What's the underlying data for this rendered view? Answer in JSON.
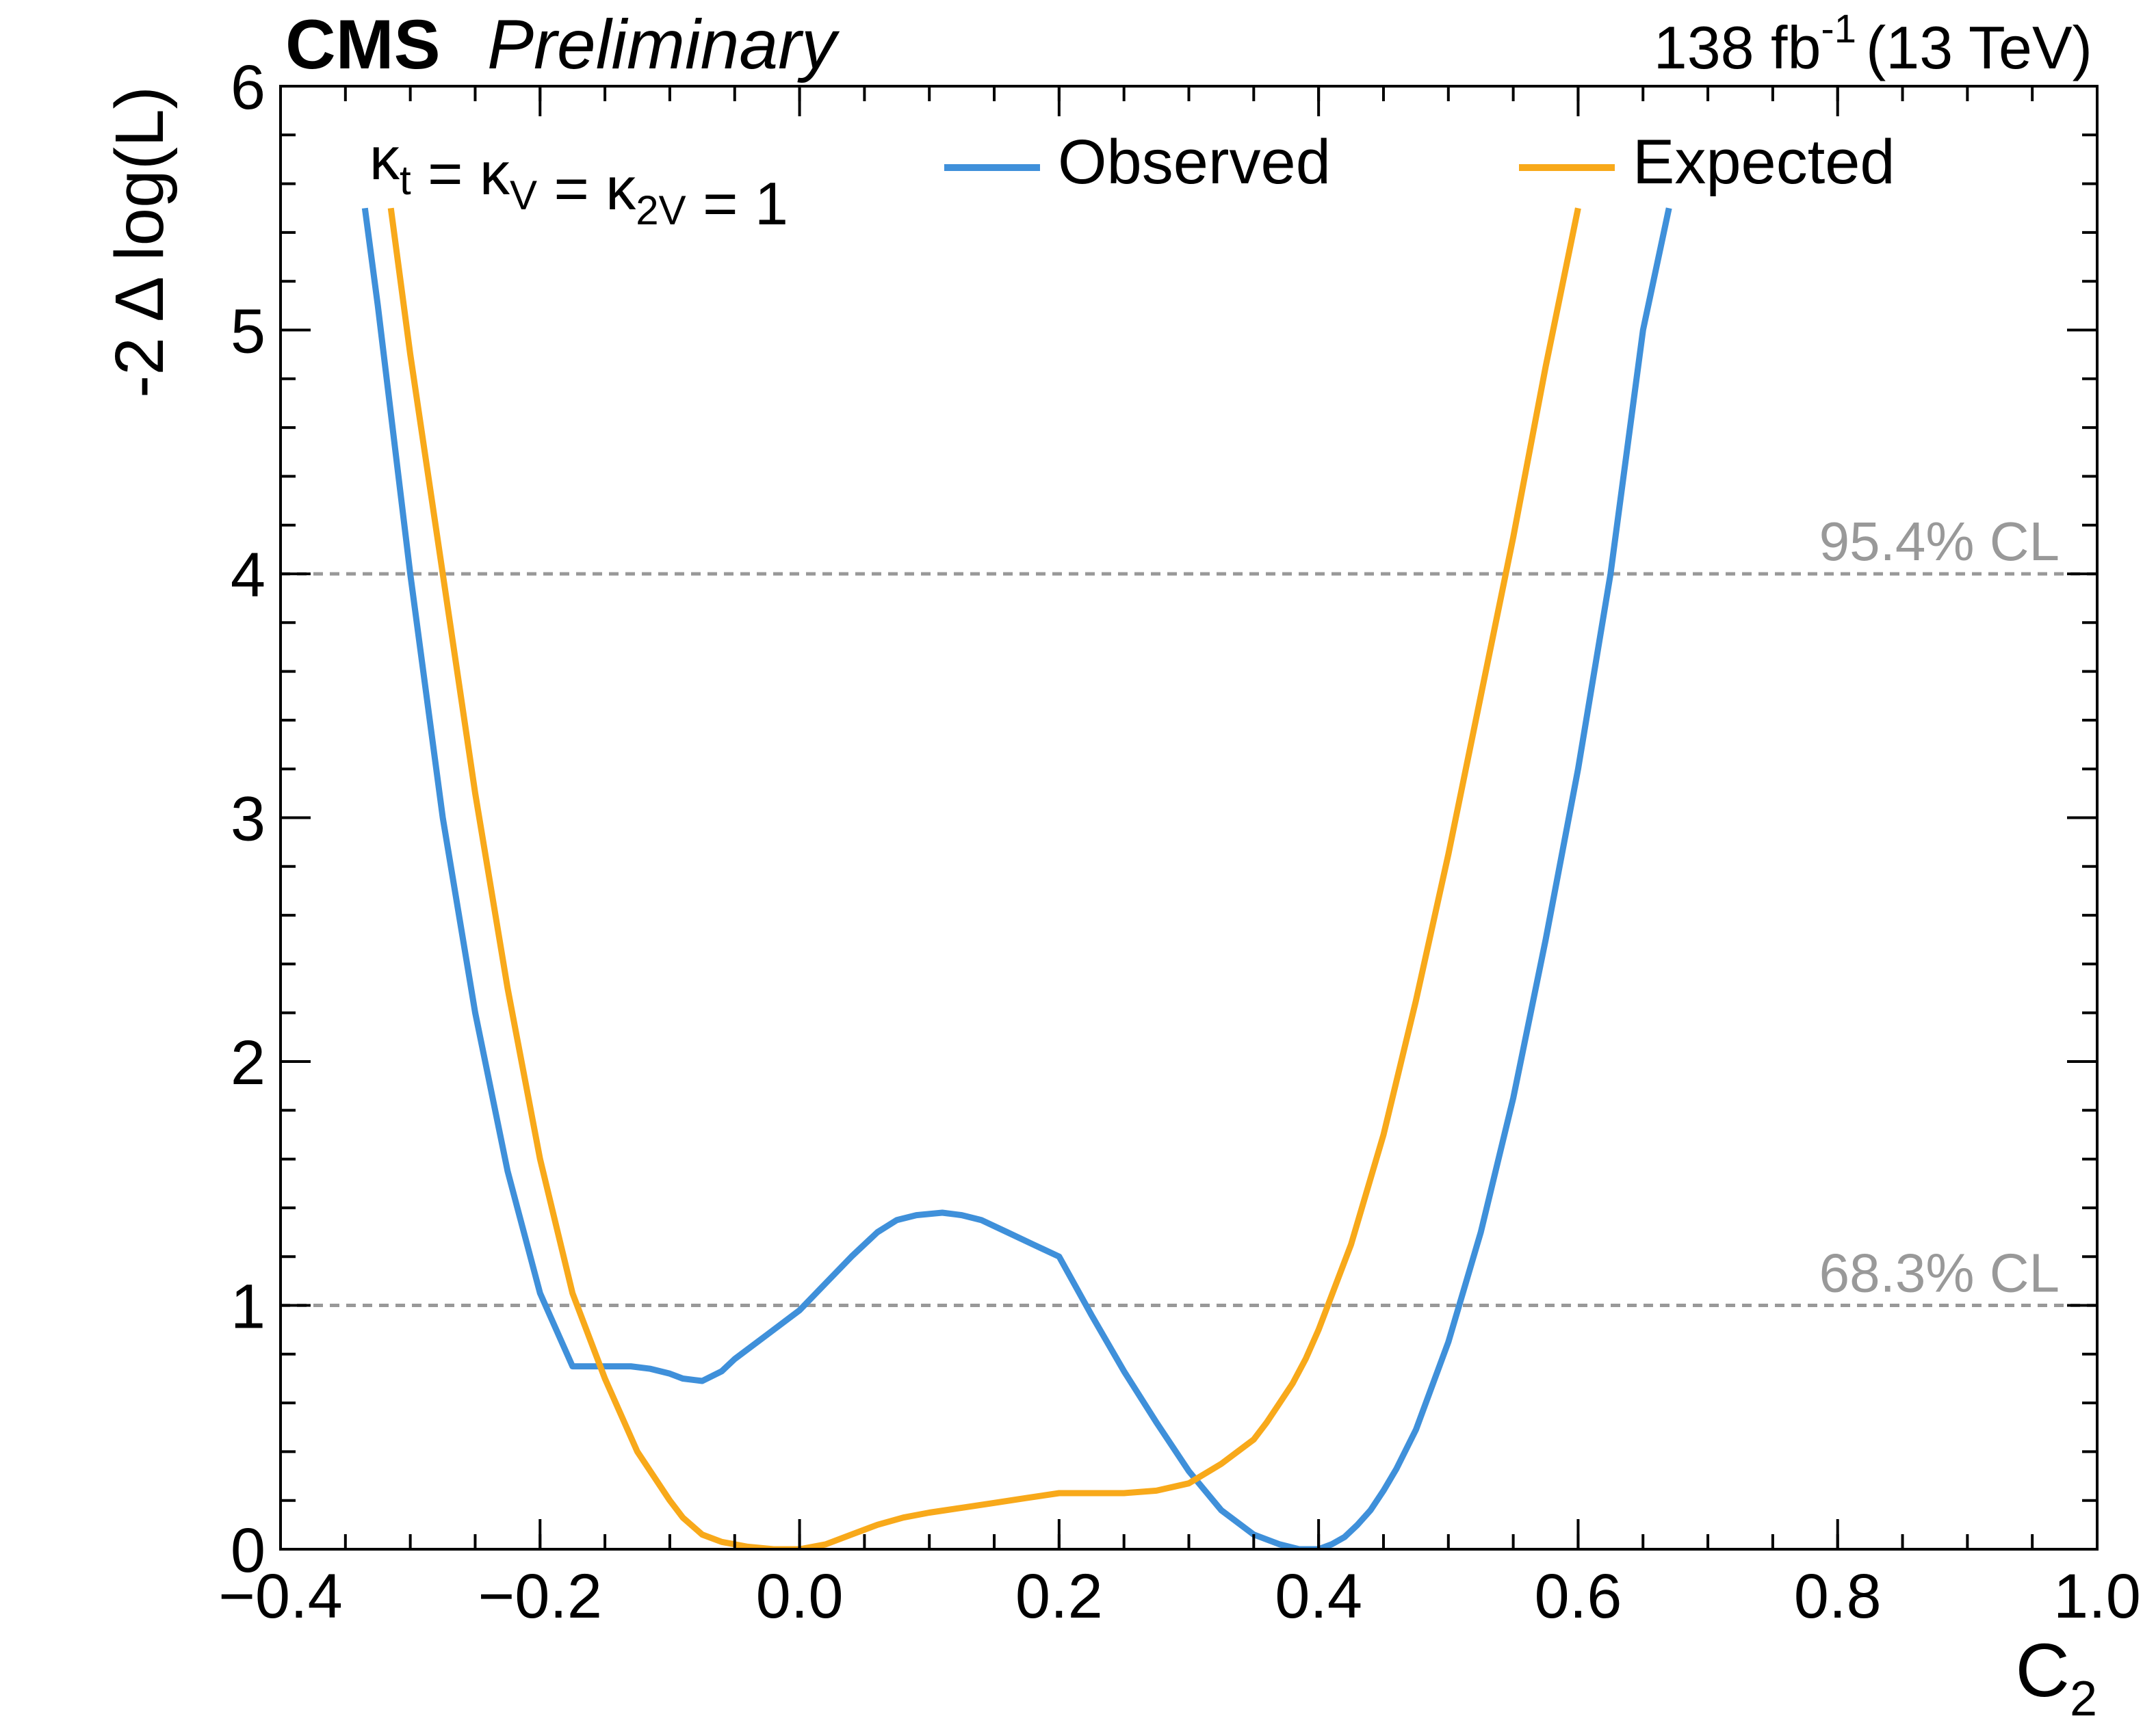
{
  "chart_data": {
    "type": "line",
    "experiment": "CMS",
    "status": "Preliminary",
    "lumi_text": "138 fb",
    "lumi_exp": "-1",
    "energy_text": "(13 TeV)",
    "xlabel": {
      "main": "C",
      "sub": "2"
    },
    "ylabel": "-2 Δ log(L)",
    "xlim": [
      -0.4,
      1.0
    ],
    "ylim": [
      0,
      6
    ],
    "x_ticks": [
      -0.4,
      -0.2,
      0.0,
      0.2,
      0.4,
      0.6,
      0.8,
      1.0
    ],
    "x_tick_labels": [
      "−0.4",
      "−0.2",
      "0.0",
      "0.2",
      "0.4",
      "0.6",
      "0.8",
      "1.0"
    ],
    "y_ticks": [
      0,
      1,
      2,
      3,
      4,
      5,
      6
    ],
    "y_tick_labels": [
      "0",
      "1",
      "2",
      "3",
      "4",
      "5",
      "6"
    ],
    "x_minor_step": 0.05,
    "y_minor_step": 0.2,
    "grid": false,
    "legend_position": "top",
    "annotation": {
      "parts": [
        {
          "t": "κ",
          "s": "t"
        },
        {
          "t": " = κ",
          "s": "V"
        },
        {
          "t": " = κ",
          "s": "2V"
        },
        {
          "t": " = 1",
          "s": ""
        }
      ]
    },
    "reference_lines": [
      {
        "y": 1,
        "label": "68.3% CL",
        "color": "#999999"
      },
      {
        "y": 4,
        "label": "95.4% CL",
        "color": "#999999"
      }
    ],
    "series": [
      {
        "name": "Observed",
        "color": "#3f90da",
        "x": [
          -0.335,
          -0.325,
          -0.3,
          -0.275,
          -0.25,
          -0.225,
          -0.2,
          -0.175,
          -0.15,
          -0.13,
          -0.115,
          -0.1,
          -0.09,
          -0.075,
          -0.06,
          -0.05,
          -0.025,
          0.0,
          0.02,
          0.04,
          0.06,
          0.075,
          0.09,
          0.11,
          0.125,
          0.14,
          0.16,
          0.18,
          0.2,
          0.225,
          0.25,
          0.275,
          0.3,
          0.325,
          0.35,
          0.37,
          0.385,
          0.4,
          0.41,
          0.42,
          0.43,
          0.44,
          0.45,
          0.46,
          0.475,
          0.5,
          0.525,
          0.55,
          0.575,
          0.6,
          0.625,
          0.65,
          0.67
        ],
        "y": [
          5.5,
          5.1,
          4.0,
          3.0,
          2.2,
          1.55,
          1.05,
          0.75,
          0.75,
          0.75,
          0.74,
          0.72,
          0.7,
          0.69,
          0.73,
          0.78,
          0.88,
          0.98,
          1.09,
          1.2,
          1.3,
          1.35,
          1.37,
          1.38,
          1.37,
          1.35,
          1.3,
          1.25,
          1.2,
          0.96,
          0.73,
          0.52,
          0.32,
          0.16,
          0.06,
          0.02,
          0.0,
          0.0,
          0.02,
          0.05,
          0.1,
          0.16,
          0.24,
          0.33,
          0.49,
          0.85,
          1.3,
          1.85,
          2.5,
          3.2,
          4.0,
          5.0,
          5.5
        ]
      },
      {
        "name": "Expected",
        "color": "#f8a91a",
        "x": [
          -0.315,
          -0.3,
          -0.275,
          -0.25,
          -0.225,
          -0.2,
          -0.175,
          -0.15,
          -0.125,
          -0.1,
          -0.09,
          -0.075,
          -0.06,
          -0.04,
          -0.02,
          0.0,
          0.02,
          0.04,
          0.06,
          0.08,
          0.1,
          0.125,
          0.15,
          0.175,
          0.2,
          0.225,
          0.25,
          0.275,
          0.3,
          0.325,
          0.35,
          0.36,
          0.37,
          0.38,
          0.39,
          0.4,
          0.425,
          0.45,
          0.475,
          0.5,
          0.525,
          0.55,
          0.575,
          0.6
        ],
        "y": [
          5.5,
          4.9,
          4.0,
          3.1,
          2.3,
          1.6,
          1.05,
          0.7,
          0.4,
          0.2,
          0.13,
          0.06,
          0.03,
          0.01,
          0.0,
          0.0,
          0.02,
          0.06,
          0.1,
          0.13,
          0.15,
          0.17,
          0.19,
          0.21,
          0.23,
          0.23,
          0.23,
          0.24,
          0.27,
          0.35,
          0.45,
          0.52,
          0.6,
          0.68,
          0.78,
          0.9,
          1.25,
          1.7,
          2.25,
          2.85,
          3.5,
          4.15,
          4.85,
          5.5
        ]
      }
    ]
  }
}
